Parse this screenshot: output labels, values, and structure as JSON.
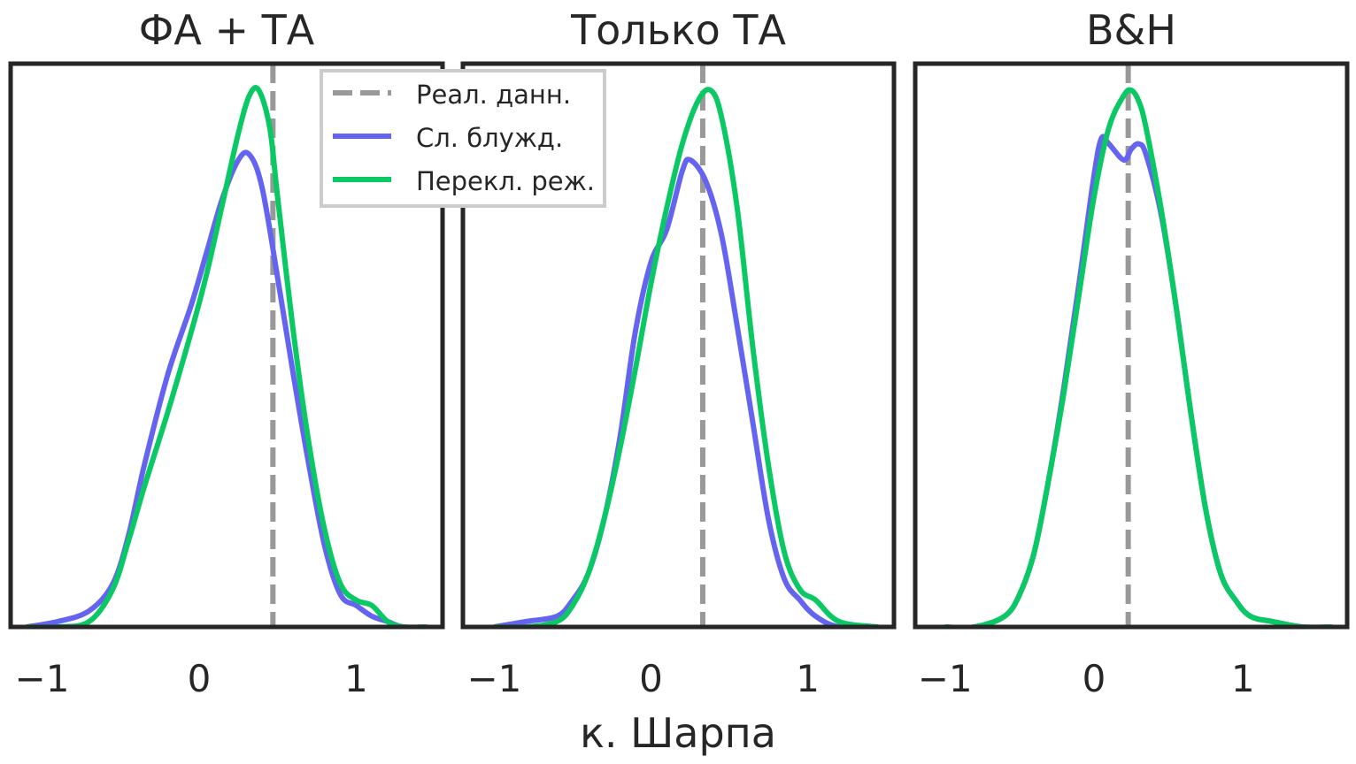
{
  "chart_data": {
    "type": "line",
    "xlabel": "к. Шарпа",
    "legend": {
      "placement": "upper-center",
      "entries": [
        {
          "key": "real",
          "label": "Реал. данн.",
          "color": "#999999",
          "style": "dashed"
        },
        {
          "key": "rw",
          "label": "Сл. блужд.",
          "color": "#6464f0",
          "style": "solid"
        },
        {
          "key": "rs",
          "label": "Перекл. реж.",
          "color": "#0ac864",
          "style": "solid"
        }
      ]
    },
    "panels": [
      {
        "title": "ФА + ТА",
        "xticks": [
          "−1",
          "0",
          "1"
        ],
        "xlim": [
          -1.2,
          1.55
        ],
        "real_value": 0.47,
        "series": [
          {
            "key": "rw",
            "x": [
              -1.1,
              -0.9,
              -0.7,
              -0.55,
              -0.45,
              -0.35,
              -0.2,
              -0.05,
              0.05,
              0.15,
              0.25,
              0.32,
              0.4,
              0.5,
              0.6,
              0.7,
              0.8,
              0.9,
              1.0,
              1.1,
              1.2,
              1.3,
              1.45
            ],
            "y": [
              0.0,
              0.01,
              0.03,
              0.08,
              0.17,
              0.3,
              0.47,
              0.6,
              0.7,
              0.8,
              0.87,
              0.88,
              0.82,
              0.65,
              0.47,
              0.3,
              0.15,
              0.06,
              0.04,
              0.02,
              0.01,
              0.0,
              0.0
            ]
          },
          {
            "key": "rs",
            "x": [
              -1.1,
              -0.9,
              -0.7,
              -0.55,
              -0.45,
              -0.35,
              -0.2,
              -0.05,
              0.05,
              0.15,
              0.25,
              0.32,
              0.38,
              0.45,
              0.5,
              0.6,
              0.7,
              0.8,
              0.9,
              1.0,
              1.1,
              1.2,
              1.3,
              1.45
            ],
            "y": [
              0.0,
              0.0,
              0.01,
              0.07,
              0.16,
              0.26,
              0.4,
              0.55,
              0.66,
              0.79,
              0.92,
              0.99,
              1.0,
              0.93,
              0.8,
              0.55,
              0.34,
              0.18,
              0.08,
              0.05,
              0.04,
              0.01,
              0.0,
              0.0
            ]
          }
        ]
      },
      {
        "title": "Только ТА",
        "xticks": [
          "−1",
          "0",
          "1"
        ],
        "xlim": [
          -1.2,
          1.55
        ],
        "real_value": 0.33,
        "series": [
          {
            "key": "rw",
            "x": [
              -1.0,
              -0.8,
              -0.6,
              -0.5,
              -0.4,
              -0.3,
              -0.2,
              -0.1,
              0.0,
              0.1,
              0.2,
              0.25,
              0.35,
              0.45,
              0.55,
              0.65,
              0.75,
              0.85,
              0.95,
              1.05,
              1.2,
              1.45
            ],
            "y": [
              0.0,
              0.01,
              0.02,
              0.05,
              0.1,
              0.2,
              0.35,
              0.55,
              0.68,
              0.74,
              0.85,
              0.87,
              0.83,
              0.73,
              0.56,
              0.38,
              0.2,
              0.09,
              0.05,
              0.02,
              0.0,
              0.0
            ]
          },
          {
            "key": "rs",
            "x": [
              -1.0,
              -0.8,
              -0.6,
              -0.5,
              -0.4,
              -0.3,
              -0.2,
              -0.1,
              0.0,
              0.1,
              0.2,
              0.3,
              0.38,
              0.45,
              0.55,
              0.65,
              0.75,
              0.85,
              0.95,
              1.05,
              1.2,
              1.45
            ],
            "y": [
              0.0,
              0.0,
              0.01,
              0.04,
              0.1,
              0.2,
              0.33,
              0.48,
              0.64,
              0.78,
              0.9,
              0.98,
              1.0,
              0.95,
              0.78,
              0.52,
              0.3,
              0.14,
              0.07,
              0.05,
              0.01,
              0.0
            ]
          }
        ]
      },
      {
        "title": "B&H",
        "xticks": [
          "−1",
          "0",
          "1"
        ],
        "xlim": [
          -1.2,
          1.7
        ],
        "real_value": 0.23,
        "series": [
          {
            "key": "rw",
            "x": [
              -1.0,
              -0.8,
              -0.6,
              -0.5,
              -0.4,
              -0.3,
              -0.2,
              -0.1,
              0.0,
              0.05,
              0.1,
              0.2,
              0.25,
              0.3,
              0.35,
              0.45,
              0.55,
              0.65,
              0.75,
              0.85,
              0.95,
              1.05,
              1.2,
              1.4,
              1.6
            ],
            "y": [
              0.0,
              0.0,
              0.02,
              0.06,
              0.14,
              0.28,
              0.45,
              0.64,
              0.84,
              0.91,
              0.9,
              0.87,
              0.89,
              0.9,
              0.88,
              0.77,
              0.6,
              0.4,
              0.22,
              0.1,
              0.05,
              0.02,
              0.01,
              0.0,
              0.0
            ]
          },
          {
            "key": "rs",
            "x": [
              -1.0,
              -0.8,
              -0.6,
              -0.5,
              -0.4,
              -0.3,
              -0.2,
              -0.1,
              0.0,
              0.1,
              0.2,
              0.25,
              0.3,
              0.35,
              0.45,
              0.55,
              0.65,
              0.75,
              0.85,
              0.95,
              1.05,
              1.2,
              1.4,
              1.6
            ],
            "y": [
              0.0,
              0.0,
              0.02,
              0.06,
              0.14,
              0.28,
              0.44,
              0.62,
              0.8,
              0.93,
              0.99,
              1.0,
              0.98,
              0.93,
              0.78,
              0.6,
              0.4,
              0.22,
              0.1,
              0.05,
              0.02,
              0.01,
              0.0,
              0.0
            ]
          }
        ]
      }
    ]
  }
}
